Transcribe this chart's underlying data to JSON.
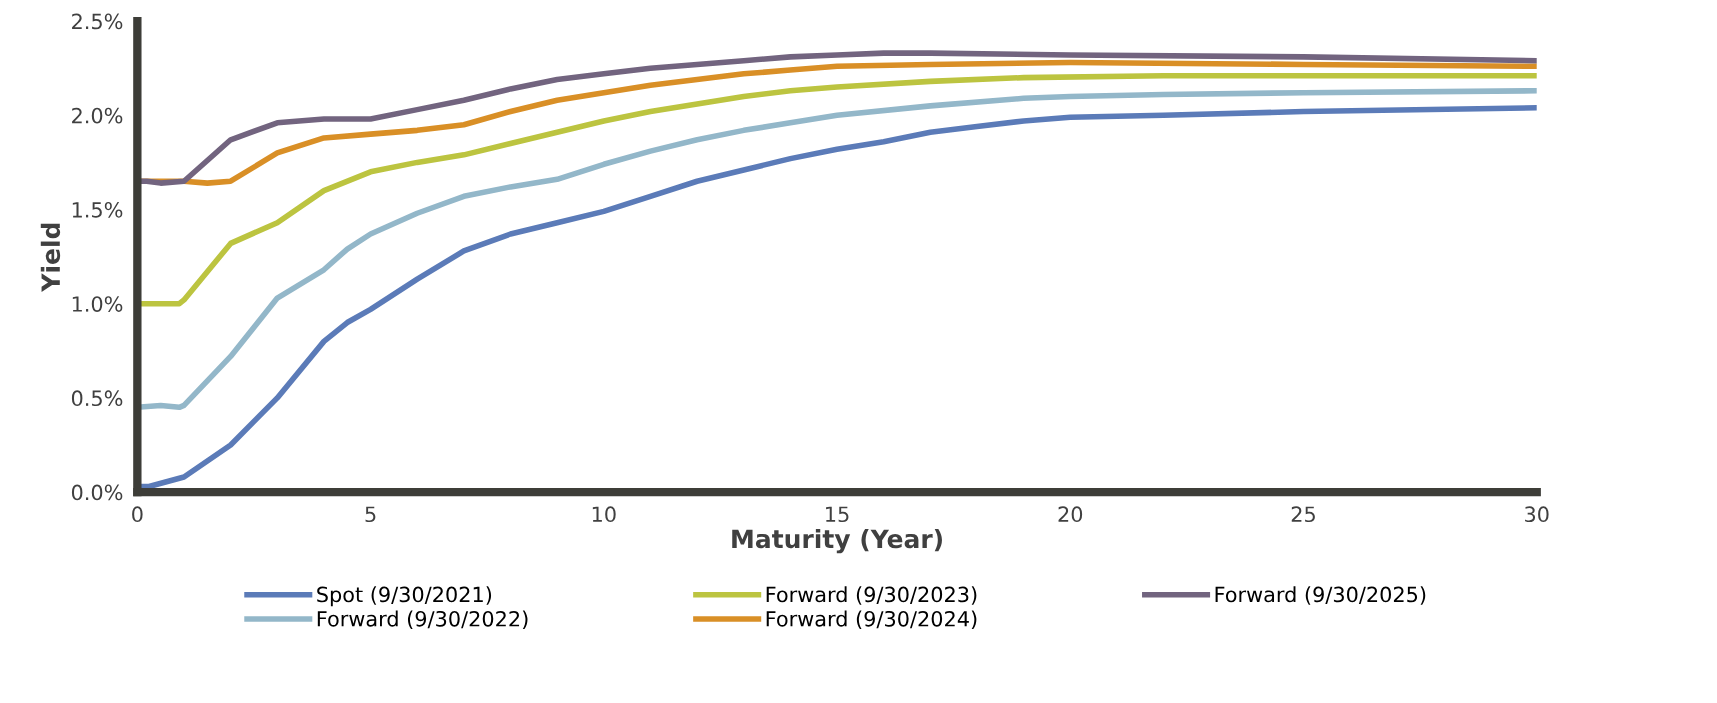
{
  "chart_data": {
    "type": "line",
    "xlabel": "Maturity (Year)",
    "ylabel": "Yield",
    "xlim": [
      0,
      30
    ],
    "xticks": [
      0,
      5,
      10,
      15,
      20,
      25,
      30
    ],
    "ylim": [
      0,
      2.5
    ],
    "yticks": [
      {
        "value": 0,
        "label": "0.0%"
      },
      {
        "value": 0.5,
        "label": "0.5%"
      },
      {
        "value": 1,
        "label": "1.0%"
      },
      {
        "value": 1.5,
        "label": "1.5%"
      },
      {
        "value": 2,
        "label": "2.0%"
      },
      {
        "value": 2.5,
        "label": "2.5%"
      }
    ],
    "grid": false,
    "legend": "bottom",
    "marker": "none",
    "line_style": "solid",
    "series": [
      {
        "name": "Spot (9/30/2021)",
        "color": "#5b7bb8",
        "x": [
          0,
          0.25,
          1,
          2,
          3,
          4,
          4.5,
          5,
          6,
          7,
          8,
          9,
          10,
          11,
          12,
          13,
          14,
          15,
          16,
          17,
          18,
          19,
          20,
          22,
          25,
          30
        ],
        "values": [
          0.03,
          0.03,
          0.08,
          0.25,
          0.5,
          0.8,
          0.9,
          0.97,
          1.13,
          1.28,
          1.37,
          1.43,
          1.49,
          1.57,
          1.65,
          1.71,
          1.77,
          1.82,
          1.86,
          1.91,
          1.94,
          1.97,
          1.99,
          2.0,
          2.02,
          2.04
        ]
      },
      {
        "name": "Forward (9/30/2022)",
        "color": "#93b7c9",
        "x": [
          0,
          0.5,
          0.9,
          1,
          2,
          3,
          4,
          4.5,
          5,
          6,
          7,
          8,
          9,
          10,
          11,
          12,
          13,
          14,
          15,
          17,
          19,
          20,
          22,
          25,
          30
        ],
        "values": [
          0.45,
          0.46,
          0.45,
          0.46,
          0.72,
          1.03,
          1.18,
          1.29,
          1.37,
          1.48,
          1.57,
          1.62,
          1.66,
          1.74,
          1.81,
          1.87,
          1.92,
          1.96,
          2.0,
          2.05,
          2.09,
          2.1,
          2.11,
          2.12,
          2.13
        ]
      },
      {
        "name": "Forward (9/30/2023)",
        "color": "#bcc440",
        "x": [
          0,
          0.5,
          0.9,
          1,
          2,
          3,
          4,
          5,
          6,
          7,
          8,
          9,
          10,
          11,
          12,
          13,
          14,
          15,
          17,
          19,
          22,
          30
        ],
        "values": [
          1.0,
          1.0,
          1.0,
          1.02,
          1.32,
          1.43,
          1.6,
          1.7,
          1.75,
          1.79,
          1.85,
          1.91,
          1.97,
          2.02,
          2.06,
          2.1,
          2.13,
          2.15,
          2.18,
          2.2,
          2.21,
          2.21
        ]
      },
      {
        "name": "Forward (9/30/2024)",
        "color": "#d98f26",
        "x": [
          0,
          1,
          1.5,
          2,
          3,
          4,
          5,
          6,
          7,
          8,
          9,
          10,
          11,
          12,
          13,
          14,
          15,
          17,
          20,
          25,
          30
        ],
        "values": [
          1.65,
          1.65,
          1.64,
          1.65,
          1.8,
          1.88,
          1.9,
          1.92,
          1.95,
          2.02,
          2.08,
          2.12,
          2.16,
          2.19,
          2.22,
          2.24,
          2.26,
          2.27,
          2.28,
          2.27,
          2.26
        ]
      },
      {
        "name": "Forward (9/30/2025)",
        "color": "#72647f",
        "x": [
          0,
          0.2,
          0.5,
          1,
          2,
          3,
          4,
          5,
          6,
          7,
          8,
          9,
          10,
          11,
          12,
          13,
          14,
          15,
          16,
          17,
          20,
          25,
          30
        ],
        "values": [
          1.65,
          1.65,
          1.64,
          1.65,
          1.87,
          1.96,
          1.98,
          1.98,
          2.03,
          2.08,
          2.14,
          2.19,
          2.22,
          2.25,
          2.27,
          2.29,
          2.31,
          2.32,
          2.33,
          2.33,
          2.32,
          2.31,
          2.29
        ]
      }
    ]
  }
}
